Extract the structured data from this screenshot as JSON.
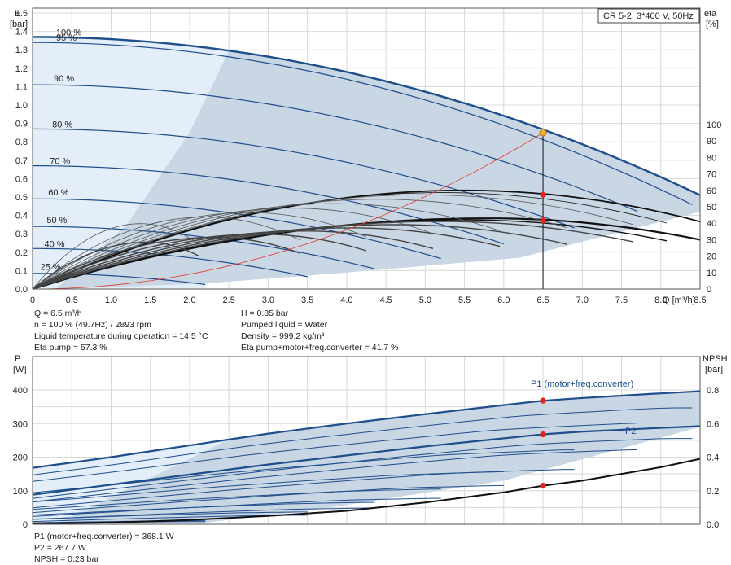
{
  "chart_data": [
    {
      "type": "line",
      "title": "CR 5-2, 3*400 V, 50Hz",
      "xlabel": "Q [m³/h]",
      "ylabel": "H [bar]",
      "y2label": "eta [%]",
      "xlim": [
        0,
        8.5
      ],
      "ylim": [
        0,
        1.5
      ],
      "y2lim": [
        0,
        100
      ],
      "grid": true,
      "x_ticks": [
        "0",
        "0.5",
        "1.0",
        "1.5",
        "2.0",
        "2.5",
        "3.0",
        "3.5",
        "4.0",
        "4.5",
        "5.0",
        "5.5",
        "6.0",
        "6.5",
        "7.0",
        "7.5",
        "8.0",
        "8.5"
      ],
      "y_ticks": [
        "0.0",
        "0.1",
        "0.2",
        "0.3",
        "0.4",
        "0.5",
        "0.6",
        "0.7",
        "0.8",
        "0.9",
        "1.0",
        "1.1",
        "1.2",
        "1.3",
        "1.4",
        "1.5"
      ],
      "y2_ticks": [
        "0",
        "10",
        "20",
        "30",
        "40",
        "50",
        "60",
        "70",
        "80",
        "90",
        "100"
      ],
      "speed_labels": [
        {
          "text": "100 %",
          "q": 0.3,
          "h": 1.37
        },
        {
          "text": "95 %",
          "q": 0.3,
          "h": 1.34
        },
        {
          "text": "90 %",
          "q": 0.27,
          "h": 1.12
        },
        {
          "text": "80 %",
          "q": 0.25,
          "h": 0.87
        },
        {
          "text": "70 %",
          "q": 0.22,
          "h": 0.67
        },
        {
          "text": "60 %",
          "q": 0.2,
          "h": 0.5
        },
        {
          "text": "50 %",
          "q": 0.18,
          "h": 0.35
        },
        {
          "text": "40 %",
          "q": 0.15,
          "h": 0.22
        },
        {
          "text": "25 %",
          "q": 0.1,
          "h": 0.095
        }
      ],
      "head_curves": [
        {
          "speed": 1.0,
          "h0": 1.37,
          "k": 0.0119,
          "qmax": 8.5
        },
        {
          "speed": 0.95,
          "h0": 1.34,
          "k": 0.0125,
          "qmax": 8.4
        },
        {
          "speed": 0.9,
          "h0": 1.11,
          "k": 0.0116,
          "qmax": 7.7
        },
        {
          "speed": 0.8,
          "h0": 0.87,
          "k": 0.0113,
          "qmax": 6.9
        },
        {
          "speed": 0.7,
          "h0": 0.67,
          "k": 0.0118,
          "qmax": 6.0
        },
        {
          "speed": 0.6,
          "h0": 0.49,
          "k": 0.012,
          "qmax": 5.2
        },
        {
          "speed": 0.5,
          "h0": 0.34,
          "k": 0.0121,
          "qmax": 4.35
        },
        {
          "speed": 0.4,
          "h0": 0.22,
          "k": 0.0125,
          "qmax": 3.5
        },
        {
          "speed": 0.25,
          "h0": 0.085,
          "k": 0.0125,
          "qmax": 2.2
        }
      ],
      "eta_pump": {
        "peak": 60,
        "q_peak": 5.5,
        "q_end": 8.5,
        "eta_end": 41
      },
      "eta_total": {
        "peak": 43,
        "q_peak": 5.8,
        "q_end": 8.5,
        "eta_end": 30
      },
      "system_curve": {
        "k": 0.0201
      },
      "duty_point": {
        "q": 6.5,
        "h": 0.85,
        "eta_pump": 57.3,
        "eta_total": 41.7
      }
    },
    {
      "type": "line",
      "ylabel": "P [W]",
      "y2label": "NPSH [bar]",
      "xlim": [
        0,
        8.5
      ],
      "ylim": [
        0,
        400
      ],
      "y2lim": [
        0,
        0.8
      ],
      "grid": true,
      "y_ticks": [
        "0",
        "100",
        "200",
        "300",
        "400"
      ],
      "y2_ticks": [
        "0.0",
        "0.2",
        "0.4",
        "0.6",
        "0.8"
      ],
      "series": [
        {
          "name": "P1 (motor+freq.converter)",
          "x": [
            0,
            1,
            2,
            3,
            4,
            5,
            6,
            6.5,
            7,
            8,
            8.5
          ],
          "values": [
            168,
            200,
            235,
            270,
            300,
            328,
            355,
            368,
            376,
            390,
            396
          ]
        },
        {
          "name": "P2",
          "x": [
            0,
            1,
            2,
            3,
            4,
            5,
            6,
            6.5,
            7,
            8,
            8.5
          ],
          "values": [
            88,
            118,
            148,
            178,
            205,
            232,
            256,
            268,
            276,
            287,
            292
          ]
        }
      ],
      "npsh": {
        "x": [
          0,
          1,
          2,
          3,
          4,
          5,
          6,
          6.5,
          7,
          8,
          8.5
        ],
        "values": [
          0.005,
          0.01,
          0.025,
          0.05,
          0.08,
          0.13,
          0.19,
          0.23,
          0.26,
          0.34,
          0.39
        ]
      },
      "duty_point": {
        "q": 6.5,
        "p1": 368.1,
        "p2": 267.7,
        "npsh": 0.23
      }
    }
  ],
  "info_top_left": [
    "Q = 6.5 m³/h",
    "n = 100 % (49.7Hz) / 2893 rpm",
    "Liquid temperature during operation = 14.5 °C",
    "Eta pump = 57.3 %"
  ],
  "info_top_right": [
    "H = 0.85 bar",
    "Pumped liquid = Water",
    "Density = 999.2 kg/m³",
    "Eta pump+motor+freq.converter = 41.7 %"
  ],
  "info_bottom": [
    "P1 (motor+freq.converter) = 368.1 W",
    "P2 = 267.7 W",
    "NPSH = 0.23 bar"
  ],
  "top_axis": {
    "y_unit_line1": "H",
    "y_unit_line2": "[bar]",
    "y2_unit_line1": "eta",
    "y2_unit_line2": "[%]"
  },
  "bottom_axis": {
    "y_unit_line1": "P",
    "y_unit_line2": "[W]",
    "y2_unit_line1": "NPSH",
    "y2_unit_line2": "[bar]"
  },
  "colors": {
    "curve_blue": "#1f4e8c",
    "envelope": "#c9d6e3",
    "envelope_light": "#e4eef8",
    "duty_red": "#e8221b",
    "duty_orange": "#f2b233",
    "system_red": "#e23a2a",
    "grid": "#d8d8d8"
  }
}
